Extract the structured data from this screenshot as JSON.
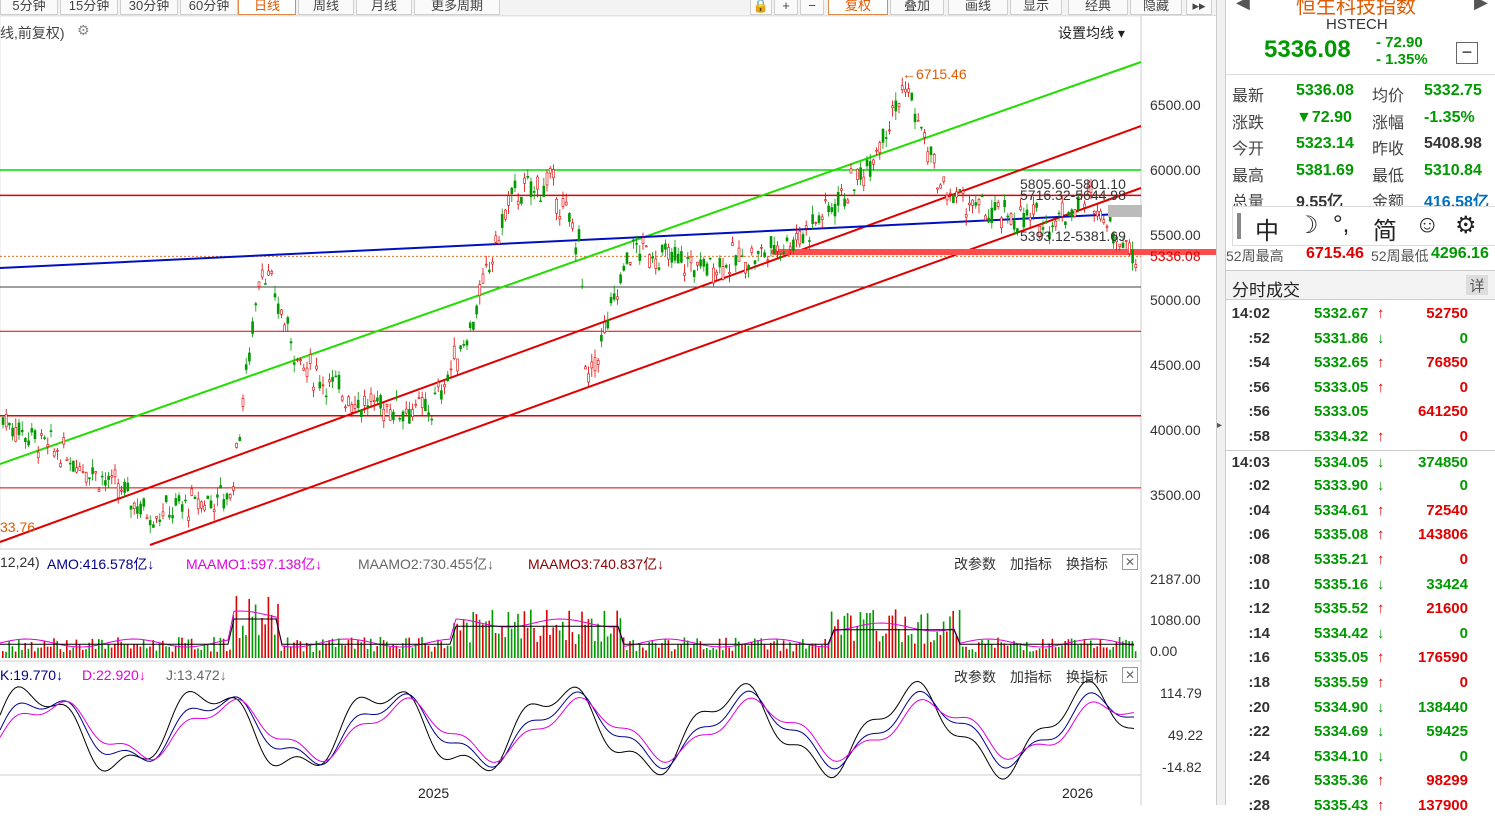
{
  "toolbar": {
    "periods": [
      "5分钟",
      "15分钟",
      "30分钟",
      "60分钟",
      "日线",
      "周线",
      "月线",
      "更多周期"
    ],
    "active": "日线",
    "right_buttons": [
      "复权",
      "叠加",
      "画线",
      "显示",
      "经典",
      "隐藏"
    ]
  },
  "main_chart": {
    "label": "线,前复权)",
    "ma_setting": "设置均线",
    "y_ticks": [
      "6500.00",
      "6000.00",
      "5500.00",
      "5000.00",
      "4500.00",
      "4000.00",
      "3500.00"
    ],
    "annotations": {
      "high": "←6715.46",
      "low": "33.76",
      "label1": "5805.60-5801.10",
      "label2": "5716.32-5644.98",
      "label3": "5393.12-5381.69",
      "hidden_price": "5336.08"
    }
  },
  "amo_panel": {
    "title": "12,24)",
    "amo": "AMO:416.578亿",
    "maamo1": "MAAMO1:597.138亿",
    "maamo2": "MAAMO2:730.455亿",
    "maamo3": "MAAMO3:740.837亿",
    "y_ticks": [
      "2187.00",
      "1080.00",
      "0.00"
    ],
    "buttons": [
      "改参数",
      "加指标",
      "换指标"
    ]
  },
  "kdj_panel": {
    "k": "K:19.770",
    "d": "D:22.920",
    "j": "J:13.472",
    "y_ticks": [
      "114.79",
      "49.22",
      "-14.82"
    ],
    "buttons": [
      "改参数",
      "加指标",
      "换指标"
    ]
  },
  "x_axis": {
    "labels": [
      "2025",
      "2026"
    ]
  },
  "quote": {
    "name": "恒生科技指数",
    "code": "HSTECH",
    "price": "5336.08",
    "change": "- 72.90",
    "change_pct": "- 1.35%",
    "rows": [
      {
        "l1": "最新",
        "v1": "5336.08",
        "c1": "green",
        "l2": "均价",
        "v2": "5332.75",
        "c2": "green"
      },
      {
        "l1": "涨跌",
        "v1": "▼72.90",
        "c1": "green",
        "l2": "涨幅",
        "v2": "-1.35%",
        "c2": "green"
      },
      {
        "l1": "今开",
        "v1": "5323.14",
        "c1": "green",
        "l2": "昨收",
        "v2": "5408.98",
        "c2": "gray"
      },
      {
        "l1": "最高",
        "v1": "5381.69",
        "c1": "green",
        "l2": "最低",
        "v2": "5310.84",
        "c2": "green"
      },
      {
        "l1": "总量",
        "v1": "9.55亿",
        "c1": "gray",
        "l2": "金额",
        "v2": "416.58亿",
        "c2": "blue"
      }
    ],
    "week52_high_label": "52周最高",
    "week52_high": "6715.46",
    "week52_low_label": "52周最低",
    "week52_low": "4296.16",
    "ime": [
      "中",
      "☽",
      "°,",
      "简",
      "☺",
      "⚙"
    ]
  },
  "ticks": {
    "title": "分时成交",
    "detail": "详",
    "rows": [
      {
        "t": "14:02",
        "p": "5332.67",
        "d": "up",
        "v": "52750"
      },
      {
        "t": ":52",
        "p": "5331.86",
        "d": "down",
        "v": "0"
      },
      {
        "t": ":54",
        "p": "5332.65",
        "d": "up",
        "v": "76850"
      },
      {
        "t": ":56",
        "p": "5333.05",
        "d": "up",
        "v": "0"
      },
      {
        "t": ":56",
        "p": "5333.05",
        "d": "",
        "v": "641250"
      },
      {
        "t": ":58",
        "p": "5334.32",
        "d": "up",
        "v": "0"
      },
      {
        "t": "14:03",
        "p": "5334.05",
        "d": "down",
        "v": "374850"
      },
      {
        "t": ":02",
        "p": "5333.90",
        "d": "down",
        "v": "0"
      },
      {
        "t": ":04",
        "p": "5334.61",
        "d": "up",
        "v": "72540"
      },
      {
        "t": ":06",
        "p": "5335.08",
        "d": "up",
        "v": "143806"
      },
      {
        "t": ":08",
        "p": "5335.21",
        "d": "up",
        "v": "0"
      },
      {
        "t": ":10",
        "p": "5335.16",
        "d": "down",
        "v": "33424"
      },
      {
        "t": ":12",
        "p": "5335.52",
        "d": "up",
        "v": "21600"
      },
      {
        "t": ":14",
        "p": "5334.42",
        "d": "down",
        "v": "0"
      },
      {
        "t": ":16",
        "p": "5335.05",
        "d": "up",
        "v": "176590"
      },
      {
        "t": ":18",
        "p": "5335.59",
        "d": "up",
        "v": "0"
      },
      {
        "t": ":20",
        "p": "5334.90",
        "d": "down",
        "v": "138440"
      },
      {
        "t": ":22",
        "p": "5334.69",
        "d": "down",
        "v": "59425"
      },
      {
        "t": ":24",
        "p": "5334.10",
        "d": "down",
        "v": "0"
      },
      {
        "t": ":26",
        "p": "5335.36",
        "d": "up",
        "v": "98299"
      },
      {
        "t": ":28",
        "p": "5335.43",
        "d": "up",
        "v": "137900"
      }
    ]
  },
  "colors": {
    "up": "#e00000",
    "down": "#009900",
    "blue": "#0070c0"
  }
}
